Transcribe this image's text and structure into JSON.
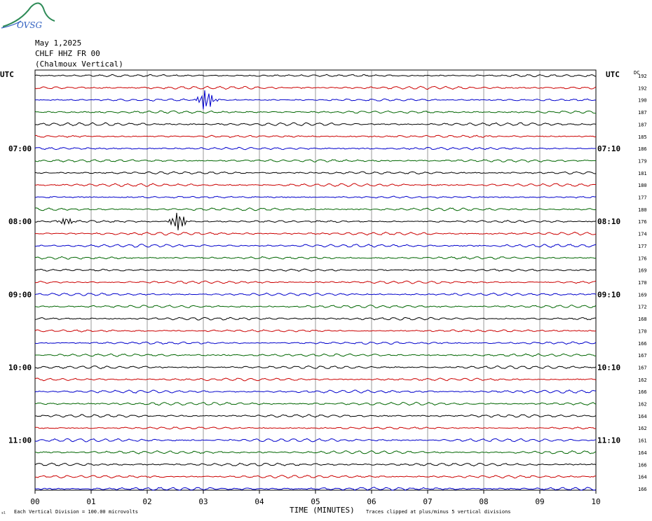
{
  "logo": {
    "text": "OVSG",
    "swoosh_color": "#2e8b57",
    "text_color": "#3060c0"
  },
  "header": {
    "date": "May 1,2025",
    "station": "CHLF HHZ FR 00",
    "location": "(Chalmoux Vertical)"
  },
  "left_axis_label": "UTC",
  "right_axis_label": "UTC",
  "dc_label": "DC",
  "footer": {
    "time_label": "TIME (MINUTES)",
    "division_note": "Each Vertical Division =  100.00 microvolts",
    "clip_note": "Traces clipped at plus/minus 5 vertical divisions",
    "corner_mark": "sl"
  },
  "chart_data": {
    "type": "line",
    "trace_colors": [
      "#000000",
      "#cc0000",
      "#0000cc",
      "#006600"
    ],
    "x_ticks": [
      "00",
      "01",
      "02",
      "03",
      "04",
      "05",
      "06",
      "07",
      "08",
      "09",
      "10"
    ],
    "xlim": [
      0,
      10
    ],
    "left_time_labels": [
      {
        "row": 6,
        "text": "07:00"
      },
      {
        "row": 12,
        "text": "08:00"
      },
      {
        "row": 18,
        "text": "09:00"
      },
      {
        "row": 24,
        "text": "10:00"
      },
      {
        "row": 30,
        "text": "11:00"
      }
    ],
    "right_time_labels": [
      {
        "row": 6,
        "text": "07:10"
      },
      {
        "row": 12,
        "text": "08:10"
      },
      {
        "row": 18,
        "text": "09:10"
      },
      {
        "row": 24,
        "text": "10:10"
      },
      {
        "row": 30,
        "text": "11:10"
      }
    ],
    "dc_offsets": [
      "192",
      "192",
      "190",
      "187",
      "187",
      "185",
      "186",
      "179",
      "181",
      "180",
      "177",
      "180",
      "176",
      "174",
      "177",
      "176",
      "169",
      "170",
      "169",
      "172",
      "168",
      "170",
      "166",
      "167",
      "167",
      "162",
      "166",
      "162",
      "164",
      "162",
      "161",
      "164",
      "166",
      "164",
      "166"
    ],
    "events": [
      {
        "row": 2,
        "minute": 3.05,
        "amplitude": 16
      },
      {
        "row": 12,
        "minute": 2.55,
        "amplitude": 14
      },
      {
        "row": 12,
        "minute": 0.55,
        "amplitude": 5
      }
    ]
  }
}
